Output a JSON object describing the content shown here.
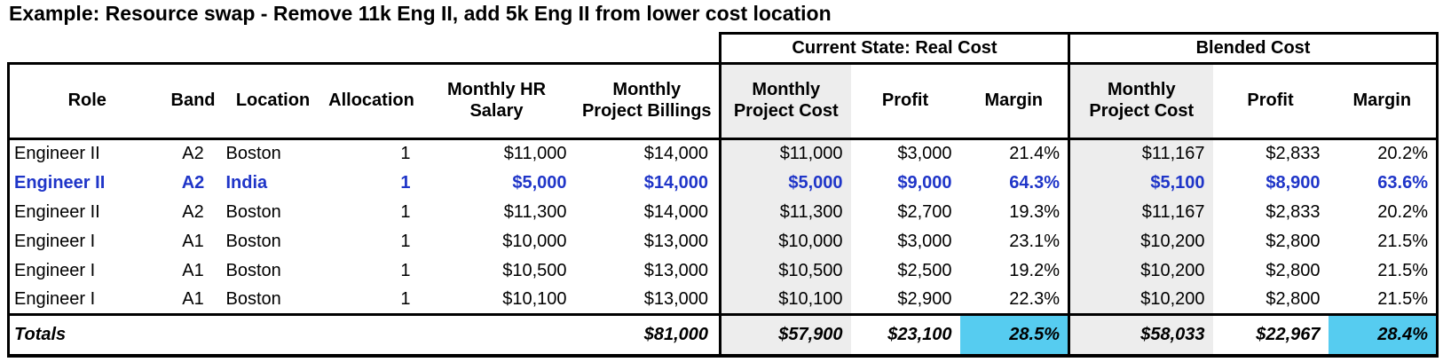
{
  "title": "Example: Resource swap - Remove 11k Eng II, add 5k Eng II from lower cost location",
  "table": {
    "group_headers": [
      {
        "label": "Current State: Real Cost"
      },
      {
        "label": "Blended Cost"
      }
    ],
    "columns": [
      "Role",
      "Band",
      "Location",
      "Allocation",
      "Monthly HR\nSalary",
      "Monthly\nProject Billings",
      "Monthly\nProject Cost",
      "Profit",
      "Margin",
      "Monthly\nProject Cost",
      "Profit",
      "Margin"
    ],
    "rows": [
      {
        "highlight": false,
        "cells": [
          "Engineer II",
          "A2",
          "Boston",
          "1",
          "$11,000",
          "$14,000",
          "$11,000",
          "$3,000",
          "21.4%",
          "$11,167",
          "$2,833",
          "20.2%"
        ]
      },
      {
        "highlight": true,
        "cells": [
          "Engineer II",
          "A2",
          "India",
          "1",
          "$5,000",
          "$14,000",
          "$5,000",
          "$9,000",
          "64.3%",
          "$5,100",
          "$8,900",
          "63.6%"
        ]
      },
      {
        "highlight": false,
        "cells": [
          "Engineer II",
          "A2",
          "Boston",
          "1",
          "$11,300",
          "$14,000",
          "$11,300",
          "$2,700",
          "19.3%",
          "$11,167",
          "$2,833",
          "20.2%"
        ]
      },
      {
        "highlight": false,
        "cells": [
          "Engineer I",
          "A1",
          "Boston",
          "1",
          "$10,000",
          "$13,000",
          "$10,000",
          "$3,000",
          "23.1%",
          "$10,200",
          "$2,800",
          "21.5%"
        ]
      },
      {
        "highlight": false,
        "cells": [
          "Engineer I",
          "A1",
          "Boston",
          "1",
          "$10,500",
          "$13,000",
          "$10,500",
          "$2,500",
          "19.2%",
          "$10,200",
          "$2,800",
          "21.5%"
        ]
      },
      {
        "highlight": false,
        "cells": [
          "Engineer I",
          "A1",
          "Boston",
          "1",
          "$10,100",
          "$13,000",
          "$10,100",
          "$2,900",
          "22.3%",
          "$10,200",
          "$2,800",
          "21.5%"
        ]
      }
    ],
    "totals": {
      "cells": [
        "Totals",
        "",
        "",
        "",
        "",
        "$81,000",
        "$57,900",
        "$23,100",
        "28.5%",
        "$58,033",
        "$22,967",
        "28.4%"
      ]
    }
  },
  "colors": {
    "highlight_text": "#1F35C8",
    "shaded_column_bg": "#EDEDED",
    "total_margin_bg": "#56CCF0"
  }
}
